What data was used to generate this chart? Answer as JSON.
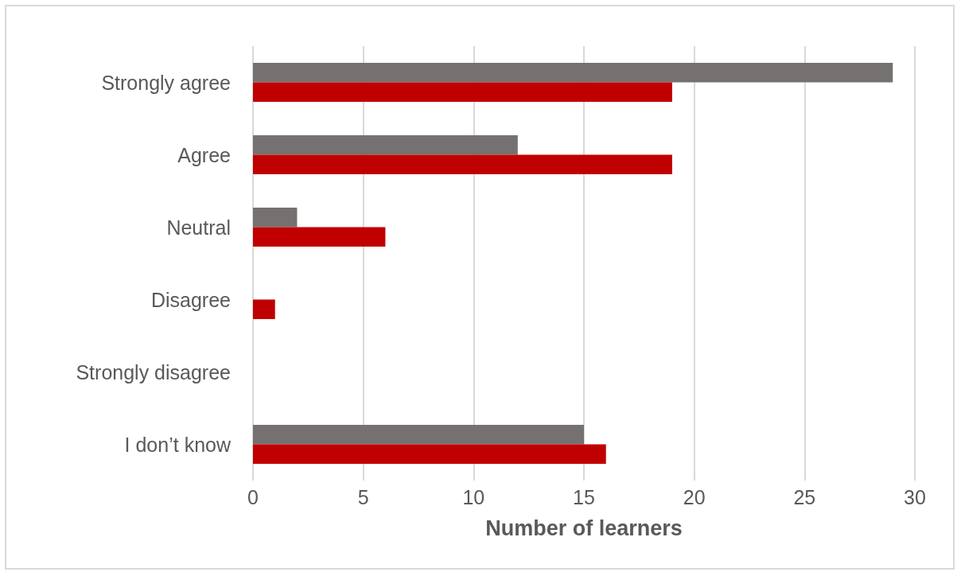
{
  "chart_data": {
    "type": "bar",
    "orientation": "horizontal",
    "xlabel": "Number of learners",
    "categories": [
      "Strongly agree",
      "Agree",
      "Neutral",
      "Disagree",
      "Strongly disagree",
      "I don’t know"
    ],
    "series": [
      {
        "color": "#767171",
        "values": [
          29,
          12,
          2,
          0,
          0,
          15
        ]
      },
      {
        "color": "#c00000",
        "values": [
          19,
          19,
          6,
          1,
          0,
          16
        ]
      }
    ],
    "xlim": [
      0,
      30
    ],
    "xticks": [
      0,
      5,
      10,
      15,
      20,
      25,
      30
    ],
    "grid": "x"
  }
}
